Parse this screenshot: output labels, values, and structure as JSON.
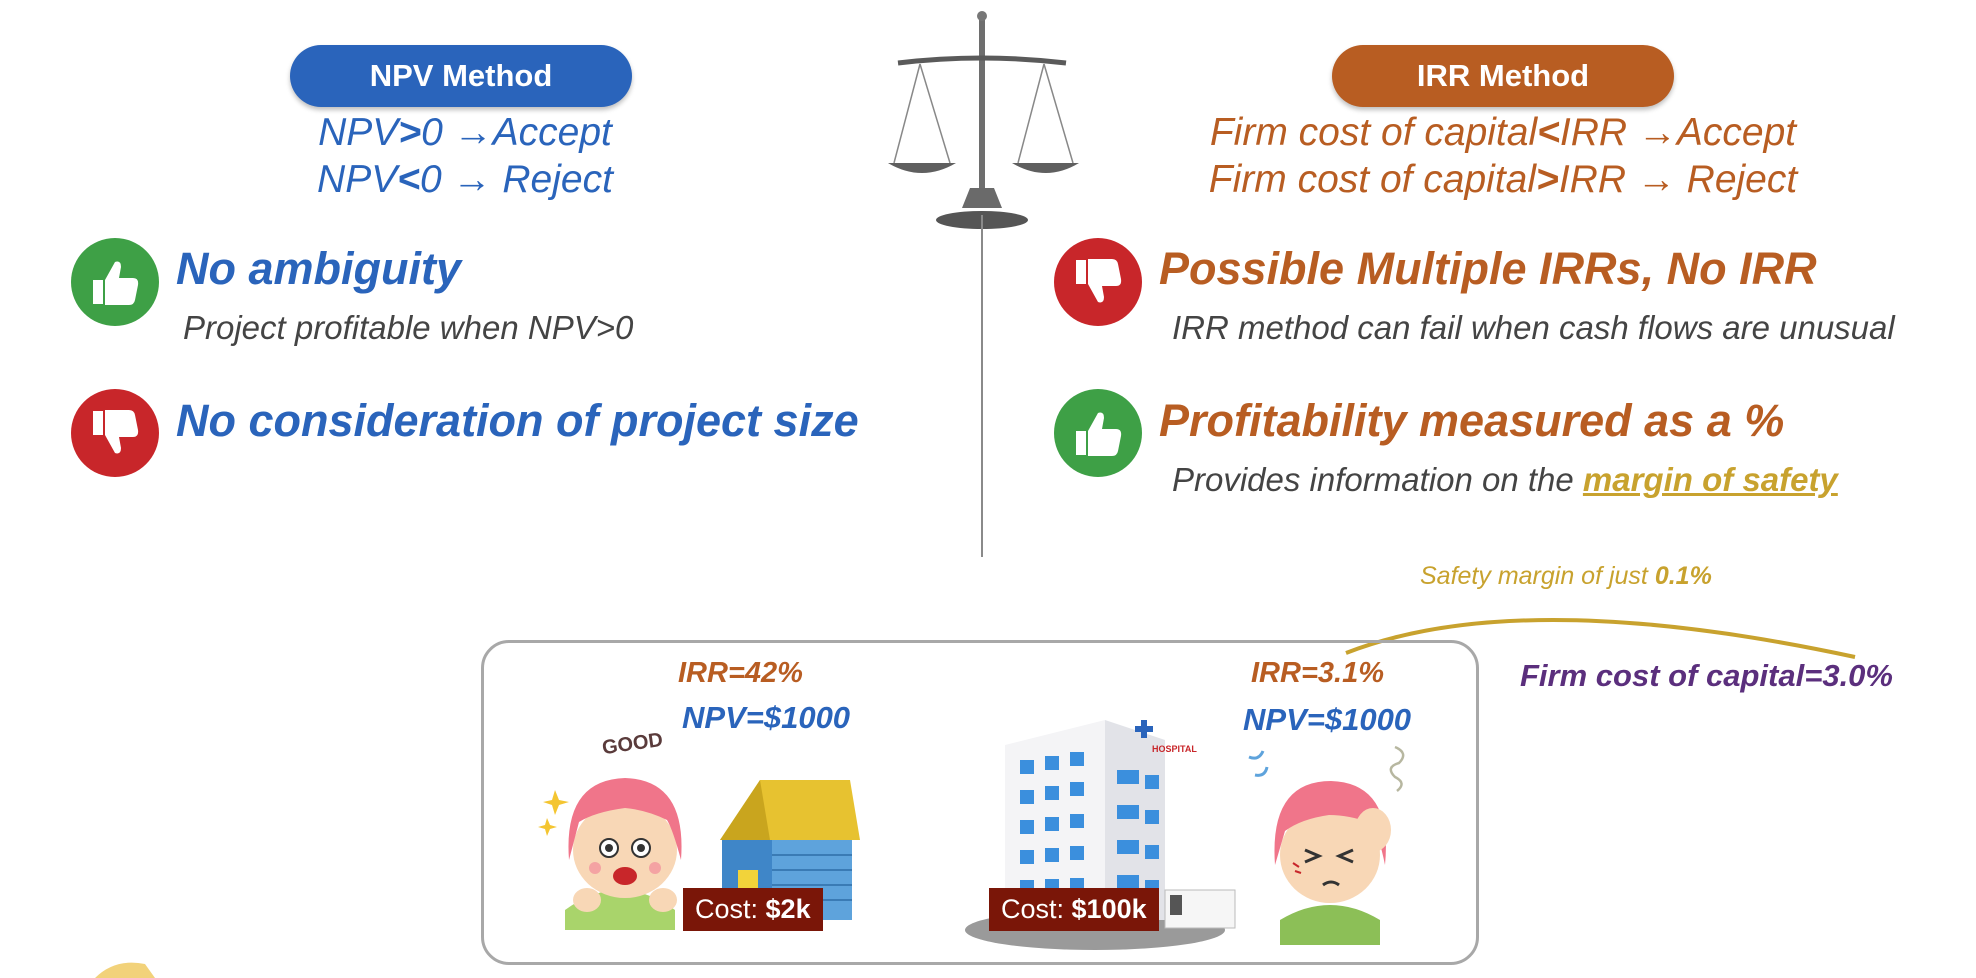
{
  "npv": {
    "title": "NPV Method",
    "rule_line1_a": "NPV",
    "rule_line1_op": ">",
    "rule_line1_b": "0 →Accept",
    "rule_line2_a": "NPV",
    "rule_line2_op": "<",
    "rule_line2_b": "0 → Reject",
    "pro_heading": "No ambiguity",
    "pro_text": "Project profitable when NPV>0",
    "con_heading": "No consideration of project size"
  },
  "irr": {
    "title": "IRR Method",
    "rule_line1_a": "Firm cost of capital",
    "rule_line1_op": "<",
    "rule_line1_b": "IRR →Accept",
    "rule_line2_a": "Firm cost of capital",
    "rule_line2_op": ">",
    "rule_line2_b": "IRR → Reject",
    "con_heading": "Possible Multiple IRRs,  No IRR",
    "con_text": "IRR method can fail when cash flows are unusual",
    "pro_heading": "Profitability measured as a %",
    "pro_text_prefix": "Provides information on the ",
    "pro_text_link": "margin of safety"
  },
  "example": {
    "house": {
      "irr": "IRR=42%",
      "npv": "NPV=$1000",
      "cost_label": "Cost: ",
      "cost_value": "$2k",
      "sticker": "GOOD"
    },
    "hospital": {
      "irr": "IRR=3.1%",
      "npv": "NPV=$1000",
      "cost_label": "Cost: ",
      "cost_value": "$100k",
      "sign": "HOSPITAL"
    },
    "safety_prefix": "Safety margin of just ",
    "safety_value": "0.1%",
    "firm_cost": "Firm cost of capital=3.0%"
  },
  "colors": {
    "npv_blue": "#2a64bb",
    "irr_orange": "#b85d22",
    "thumb_up_green": "#3ea046",
    "thumb_down_red": "#c8262a",
    "safety_gold": "#c8a22e",
    "firm_purple": "#5b2f7d",
    "cost_tag": "#7a1608"
  }
}
